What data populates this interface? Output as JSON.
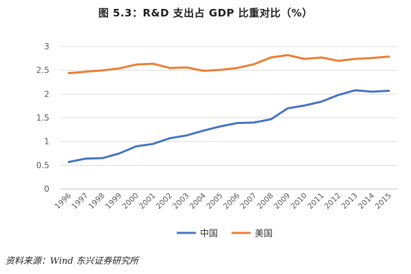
{
  "chart_title": "图 5.3：R&D 支出占 GDP 比重对比（%）",
  "source_note": "资料来源：Wind  东兴证券研究所",
  "colors": {
    "china": "#4472C4",
    "usa": "#ED7D31",
    "grid": "#d9d9d9",
    "axis_text": "#595959"
  },
  "chart_data": {
    "type": "line",
    "title": "图 5.3：R&D 支出占 GDP 比重对比（%）",
    "xlabel": "",
    "ylabel": "",
    "ylim": [
      0,
      3
    ],
    "yticks": [
      "0",
      "0.5",
      "1",
      "1.5",
      "2",
      "2.5",
      "3"
    ],
    "grid": true,
    "legend_position": "bottom",
    "categories": [
      "1996",
      "1997",
      "1998",
      "1999",
      "2000",
      "2001",
      "2002",
      "2003",
      "2004",
      "2005",
      "2006",
      "2007",
      "2008",
      "2009",
      "2010",
      "2011",
      "2012",
      "2013",
      "2014",
      "2015"
    ],
    "series": [
      {
        "name": "中国",
        "color": "#4472C4",
        "values": [
          0.57,
          0.64,
          0.65,
          0.75,
          0.9,
          0.95,
          1.07,
          1.13,
          1.23,
          1.32,
          1.39,
          1.4,
          1.47,
          1.7,
          1.76,
          1.84,
          1.98,
          2.08,
          2.05,
          2.07
        ]
      },
      {
        "name": "美国",
        "color": "#ED7D31",
        "values": [
          2.44,
          2.47,
          2.5,
          2.54,
          2.62,
          2.64,
          2.55,
          2.56,
          2.49,
          2.51,
          2.55,
          2.63,
          2.77,
          2.82,
          2.74,
          2.77,
          2.7,
          2.74,
          2.76,
          2.79
        ]
      }
    ]
  }
}
